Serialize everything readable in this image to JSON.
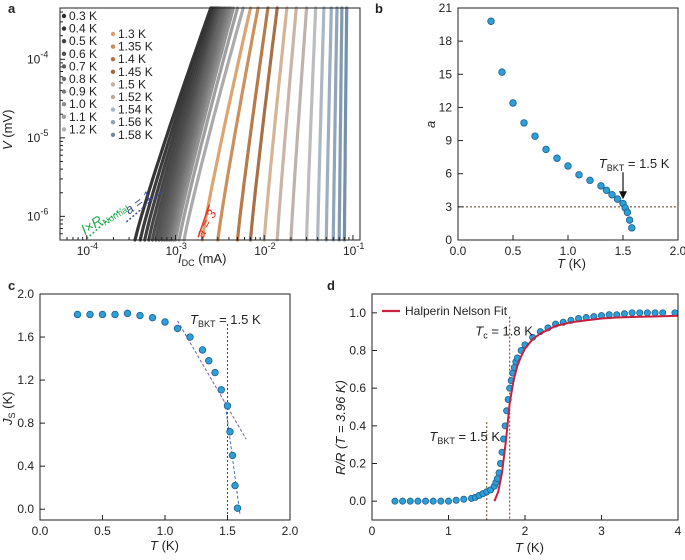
{
  "colors": {
    "dot_fill": "#2c9fd6",
    "dot_stroke": "#1f5f8f",
    "fit": "#c8203e",
    "hline": "#6b3a1a",
    "vline": "#6b3a1a",
    "slope_line": "#7a5bb5",
    "slope_line2": "#3b6cc2",
    "normal": "#1faa4a",
    "a3": "#e03a2a",
    "a1": "#3a4a9a"
  },
  "chart_data": [
    {
      "panel": "a",
      "type": "line",
      "xlabel": "I",
      "xlabel_sub": "DC",
      "xlabel_unit": " (mA)",
      "ylabel": "V",
      "ylabel_unit": " (mV)",
      "xscale": "log",
      "yscale": "log",
      "xlim": [
        5e-05,
        0.12
      ],
      "ylim": [
        5e-07,
        0.00045
      ],
      "xticks": [
        {
          "value": 0.0001,
          "base": "10",
          "exp": "-4"
        },
        {
          "value": 0.001,
          "base": "10",
          "exp": "-3"
        },
        {
          "value": 0.01,
          "base": "10",
          "exp": "-2"
        },
        {
          "value": 0.1,
          "base": "10",
          "exp": "-1"
        }
      ],
      "yticks": [
        {
          "value": 1e-06,
          "base": "10",
          "exp": "-6"
        },
        {
          "value": 1e-05,
          "base": "10",
          "exp": "-5"
        },
        {
          "value": 0.0001,
          "base": "10",
          "exp": "-4"
        }
      ],
      "legend_col1": [
        {
          "label": "0.3 K",
          "color": "#2b2b2b"
        },
        {
          "label": "0.4 K",
          "color": "#353535"
        },
        {
          "label": "0.5 K",
          "color": "#424242"
        },
        {
          "label": "0.6 K",
          "color": "#4f4f4f"
        },
        {
          "label": "0.7 K",
          "color": "#5c5c5c"
        },
        {
          "label": "0.8 K",
          "color": "#6b6b6b"
        },
        {
          "label": "0.9 K",
          "color": "#7b7b7b"
        },
        {
          "label": "1.0 K",
          "color": "#8b8b8b"
        },
        {
          "label": "1.1 K",
          "color": "#9c9c9c"
        },
        {
          "label": "1.2 K",
          "color": "#b0b0b0"
        }
      ],
      "legend_col2": [
        {
          "label": "1.3 K",
          "color": "#d9a06a"
        },
        {
          "label": "1.35 K",
          "color": "#c98a55"
        },
        {
          "label": "1.4 K",
          "color": "#b3733f"
        },
        {
          "label": "1.45 K",
          "color": "#a3683c"
        },
        {
          "label": "1.5 K",
          "color": "#c8b0a0"
        },
        {
          "label": "1.52 K",
          "color": "#b8a8a0"
        },
        {
          "label": "1.54 K",
          "color": "#a8b4bf"
        },
        {
          "label": "1.56 K",
          "color": "#8aa0b4"
        },
        {
          "label": "1.58 K",
          "color": "#6f8aa3"
        }
      ],
      "curve_x_start": [
        0.00035,
        0.0004,
        0.00045,
        0.0005,
        0.00055,
        0.0006,
        0.00065,
        0.0007,
        0.00075,
        0.0008,
        0.00085,
        0.0009,
        0.00095,
        0.001,
        0.0011,
        0.00125,
        0.002,
        0.003,
        0.005,
        0.007,
        0.01,
        0.014,
        0.02,
        0.03,
        0.04,
        0.05,
        0.06,
        0.07,
        0.08
      ],
      "curve_x_end": [
        0.0025,
        0.0026,
        0.0027,
        0.0028,
        0.0029,
        0.003,
        0.0031,
        0.0032,
        0.0034,
        0.0036,
        0.0038,
        0.004,
        0.0042,
        0.0045,
        0.005,
        0.0058,
        0.007,
        0.0085,
        0.011,
        0.014,
        0.018,
        0.023,
        0.03,
        0.038,
        0.047,
        0.057,
        0.066,
        0.075,
        0.085
      ],
      "curve_colors": [
        "#2b2b2b",
        "#303030",
        "#363636",
        "#3c3c3c",
        "#424242",
        "#484848",
        "#4f4f4f",
        "#565656",
        "#5d5d5d",
        "#656565",
        "#6e6e6e",
        "#787878",
        "#828282",
        "#8e8e8e",
        "#9a9a9a",
        "#a6a6a6",
        "#d9a06a",
        "#c98a55",
        "#b3733f",
        "#a3683c",
        "#d2b090",
        "#c8b0a0",
        "#bcaea8",
        "#b8b8bc",
        "#a8b4bf",
        "#98aabb",
        "#8aa0b4",
        "#7c95ab",
        "#6f8aa3"
      ],
      "annotations": {
        "normal_label": "I×R",
        "normal_sub": "Normal",
        "a1_label": "a = 1",
        "a3_label": "a = 3"
      }
    },
    {
      "panel": "b",
      "type": "scatter",
      "xlabel": "T",
      "xlabel_unit": " (K)",
      "ylabel": "a",
      "xlim": [
        0,
        2.0
      ],
      "ylim": [
        0,
        21
      ],
      "xticks": [
        0.0,
        0.5,
        1.0,
        1.5,
        2.0
      ],
      "xtick_labels": [
        "0.0",
        "0.5",
        "1.0",
        "1.5",
        "2.0"
      ],
      "yticks": [
        0,
        3,
        6,
        9,
        12,
        15,
        18,
        21
      ],
      "ytick_labels": [
        "0",
        "3",
        "6",
        "9",
        "12",
        "15",
        "18",
        "21"
      ],
      "x": [
        0.3,
        0.4,
        0.5,
        0.6,
        0.7,
        0.8,
        0.9,
        1.0,
        1.1,
        1.2,
        1.3,
        1.35,
        1.4,
        1.45,
        1.5,
        1.52,
        1.54,
        1.56,
        1.58
      ],
      "y": [
        19.8,
        15.2,
        12.4,
        10.6,
        9.4,
        8.2,
        7.4,
        6.7,
        5.9,
        5.4,
        4.9,
        4.5,
        4.1,
        3.7,
        3.3,
        2.9,
        2.5,
        1.8,
        1.1
      ],
      "hline": 3,
      "annotation": {
        "T": "T",
        "sub": "BKT",
        "text": " = 1.5 K",
        "x": 1.5,
        "y": 3.6
      }
    },
    {
      "panel": "c",
      "type": "scatter",
      "xlabel": "T",
      "xlabel_unit": " (K)",
      "ylabel": "J",
      "ylabel_sub": "S",
      "ylabel_unit": " (K)",
      "xlim": [
        0,
        2.0
      ],
      "ylim": [
        -0.1,
        2.0
      ],
      "xticks": [
        0.0,
        0.5,
        1.0,
        1.5,
        2.0
      ],
      "xtick_labels": [
        "0.0",
        "0.5",
        "1.0",
        "1.5",
        "2.0"
      ],
      "yticks": [
        0.0,
        0.4,
        0.8,
        1.2,
        1.6,
        2.0
      ],
      "ytick_labels": [
        "0.0",
        "0.4",
        "0.8",
        "1.2",
        "1.6",
        "2.0"
      ],
      "x": [
        0.3,
        0.4,
        0.5,
        0.6,
        0.7,
        0.8,
        0.9,
        1.0,
        1.1,
        1.2,
        1.3,
        1.35,
        1.4,
        1.45,
        1.5,
        1.52,
        1.54,
        1.56,
        1.58
      ],
      "y": [
        1.81,
        1.81,
        1.81,
        1.81,
        1.82,
        1.8,
        1.78,
        1.74,
        1.68,
        1.6,
        1.48,
        1.38,
        1.27,
        1.11,
        0.96,
        0.72,
        0.5,
        0.22,
        0.01
      ],
      "vline": 1.5,
      "slope_line": {
        "x": [
          1.1,
          1.65
        ],
        "y": [
          1.75,
          0.65
        ]
      },
      "slope_line2": {
        "x": [
          1.48,
          1.6
        ],
        "y": [
          1.0,
          -0.05
        ]
      },
      "annotation": {
        "T": "T",
        "sub": "BKT",
        "text": " = 1.5 K"
      }
    },
    {
      "panel": "d",
      "type": "scatter",
      "xlabel": "T",
      "xlabel_unit": " (K)",
      "ylabel": "R/R (T = 3.96 K)",
      "xlim": [
        0,
        4
      ],
      "ylim": [
        -0.1,
        1.1
      ],
      "xticks": [
        0,
        1,
        2,
        3,
        4
      ],
      "xtick_labels": [
        "0",
        "1",
        "2",
        "3",
        "4"
      ],
      "yticks": [
        0.0,
        0.2,
        0.4,
        0.6,
        0.8,
        1.0
      ],
      "ytick_labels": [
        "0.0",
        "0.2",
        "0.4",
        "0.6",
        "0.8",
        "1.0"
      ],
      "x": [
        0.3,
        0.4,
        0.5,
        0.6,
        0.7,
        0.8,
        0.9,
        1.0,
        1.1,
        1.2,
        1.3,
        1.35,
        1.4,
        1.45,
        1.5,
        1.55,
        1.6,
        1.62,
        1.64,
        1.66,
        1.68,
        1.7,
        1.72,
        1.74,
        1.76,
        1.78,
        1.8,
        1.82,
        1.84,
        1.86,
        1.88,
        1.9,
        1.95,
        2.0,
        2.1,
        2.2,
        2.3,
        2.4,
        2.5,
        2.6,
        2.7,
        2.8,
        2.9,
        3.0,
        3.1,
        3.2,
        3.3,
        3.4,
        3.5,
        3.6,
        3.7,
        3.8,
        3.96
      ],
      "y": [
        0.0,
        0.0,
        0.0,
        0.0,
        0.0,
        0.0,
        0.0,
        0.0,
        0.005,
        0.01,
        0.015,
        0.02,
        0.03,
        0.04,
        0.05,
        0.06,
        0.08,
        0.1,
        0.12,
        0.15,
        0.2,
        0.26,
        0.33,
        0.4,
        0.48,
        0.54,
        0.6,
        0.64,
        0.68,
        0.71,
        0.74,
        0.76,
        0.8,
        0.83,
        0.87,
        0.9,
        0.92,
        0.94,
        0.95,
        0.96,
        0.97,
        0.975,
        0.98,
        0.985,
        0.99,
        0.99,
        0.995,
        1.0,
        1.0,
        1.0,
        1.0,
        1.0,
        1.0
      ],
      "fit_x": [
        1.6,
        1.65,
        1.7,
        1.75,
        1.8,
        1.85,
        1.9,
        1.95,
        2.0,
        2.1,
        2.2,
        2.4,
        2.6,
        2.8,
        3.0,
        3.2,
        3.4,
        3.6,
        3.8,
        4.0
      ],
      "fit_y": [
        0.0,
        0.05,
        0.15,
        0.32,
        0.52,
        0.64,
        0.72,
        0.77,
        0.81,
        0.86,
        0.89,
        0.93,
        0.95,
        0.96,
        0.97,
        0.975,
        0.978,
        0.98,
        0.982,
        0.984
      ],
      "vline_bkt": 1.5,
      "vline_tc": 1.8,
      "legend_label": "Halperin Nelson Fit",
      "annotation_tc": {
        "T": "T",
        "sub": "c",
        "text": " = 1.8 K"
      },
      "annotation_bkt": {
        "T": "T",
        "sub": "BKT",
        "text": " = 1.5 K"
      }
    }
  ]
}
